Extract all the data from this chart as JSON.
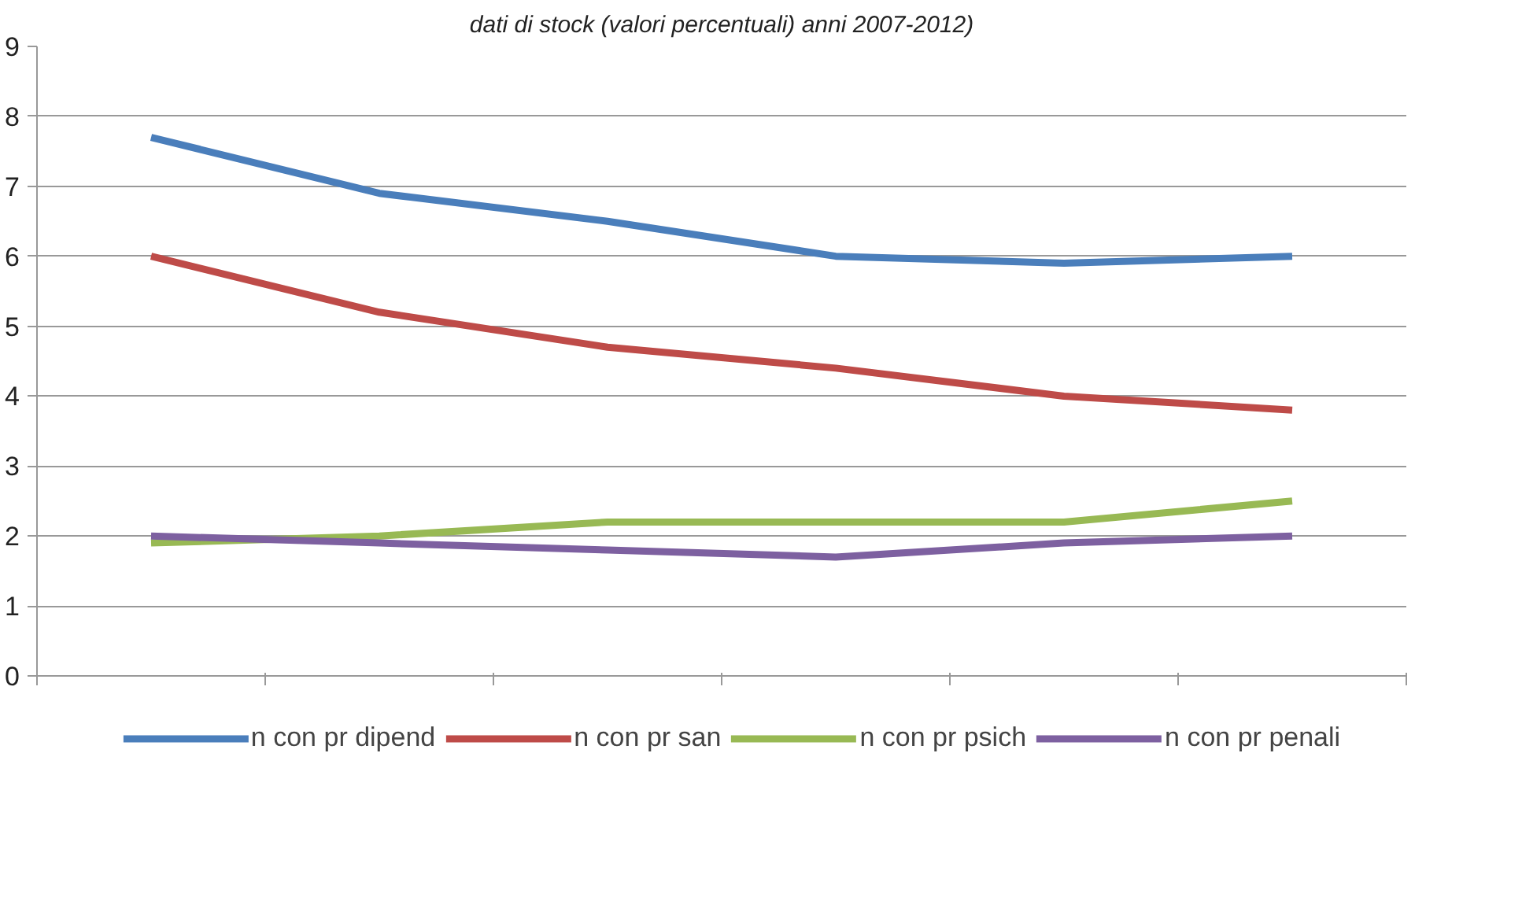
{
  "chart_data": {
    "type": "line",
    "title": "dati di stock (valori percentuali) anni 2007-2012)",
    "categories": [
      null,
      null,
      null,
      null,
      null,
      null
    ],
    "series": [
      {
        "name": "n con pr dipend",
        "color": "#4a7ebb",
        "values": [
          7.7,
          6.9,
          6.5,
          6.0,
          5.9,
          6.0
        ]
      },
      {
        "name": "n con pr san",
        "color": "#be4b48",
        "values": [
          6.0,
          5.2,
          4.7,
          4.4,
          4.0,
          3.8
        ]
      },
      {
        "name": "n con pr psich",
        "color": "#98b954",
        "values": [
          1.9,
          2.0,
          2.2,
          2.2,
          2.2,
          2.5
        ]
      },
      {
        "name": "n con pr penali",
        "color": "#7d60a0",
        "values": [
          2.0,
          1.9,
          1.8,
          1.7,
          1.9,
          2.0
        ]
      }
    ],
    "ylim": [
      0,
      9
    ],
    "yticks": [
      0,
      1,
      2,
      3,
      4,
      5,
      6,
      7,
      8,
      9
    ],
    "grid": "y",
    "legend": "bottom",
    "marker": "none",
    "line_style": "solid"
  }
}
